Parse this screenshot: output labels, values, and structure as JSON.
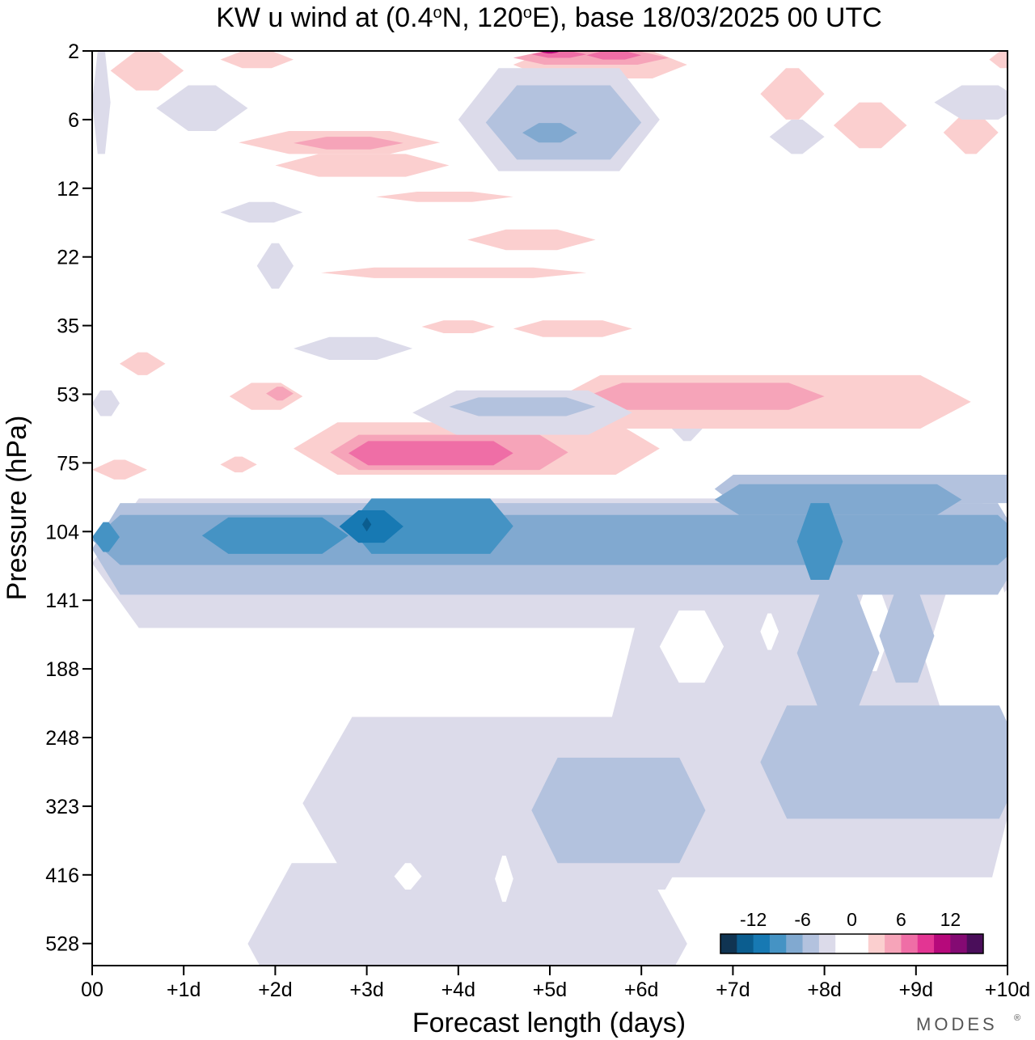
{
  "chart_data": {
    "type": "heatmap",
    "title_parts": [
      "KW u wind at (0.4",
      "o",
      "N, 120",
      "o",
      "E),  base 18/03/2025  00 UTC"
    ],
    "xlabel": "Forecast length (days)",
    "ylabel": "Pressure (hPa)",
    "x_tick_labels": [
      "00",
      "+1d",
      "+2d",
      "+3d",
      "+4d",
      "+5d",
      "+6d",
      "+7d",
      "+8d",
      "+9d",
      "+10d"
    ],
    "x_ticks": [
      0,
      1,
      2,
      3,
      4,
      5,
      6,
      7,
      8,
      9,
      10
    ],
    "xlim": [
      0,
      10
    ],
    "y_tick_labels": [
      "2",
      "6",
      "12",
      "22",
      "35",
      "53",
      "75",
      "104",
      "141",
      "188",
      "248",
      "323",
      "416",
      "528"
    ],
    "y_levels": [
      2,
      6,
      12,
      22,
      35,
      53,
      75,
      104,
      141,
      188,
      248,
      323,
      416,
      528
    ],
    "ylim": [
      2,
      630
    ],
    "y_scale": "level-index (inverted)",
    "colorbar": {
      "tick_labels": [
        "-12",
        "-6",
        "0",
        "6",
        "12"
      ],
      "tick_values": [
        -12,
        -6,
        0,
        6,
        12
      ],
      "colors": [
        "#103452",
        "#0b5d8f",
        "#1779b3",
        "#4593c4",
        "#81a9d0",
        "#b3c2de",
        "#dcdbea",
        "#ffffff",
        "#ffffff",
        "#fbcfcf",
        "#f6a4b9",
        "#ef6ea6",
        "#e33593",
        "#b6097b",
        "#840a73",
        "#4a0e5a"
      ],
      "placement": "bottom-right"
    },
    "features": [
      {
        "desc": "easterly jet",
        "level_hpa": 104,
        "x_days": [
          0,
          10
        ],
        "min_u": -14,
        "core_x": 3.0
      },
      {
        "desc": "westerly band",
        "level_hpa": 75,
        "x_days": [
          2.5,
          6.2
        ],
        "max_u": 8,
        "core_x": 3.5
      },
      {
        "desc": "westerly band",
        "level_hpa": 60,
        "x_days": [
          5,
          9.5
        ],
        "max_u": 6
      },
      {
        "desc": "weak easterlies",
        "level_hpa": [
          200,
          530
        ],
        "x_days": [
          2,
          10
        ],
        "min_u": -4
      },
      {
        "desc": "upper westerly",
        "level_hpa": 2,
        "x_days": [
          4.6,
          6.3
        ],
        "max_u": 14
      }
    ],
    "brand": "MODES"
  }
}
